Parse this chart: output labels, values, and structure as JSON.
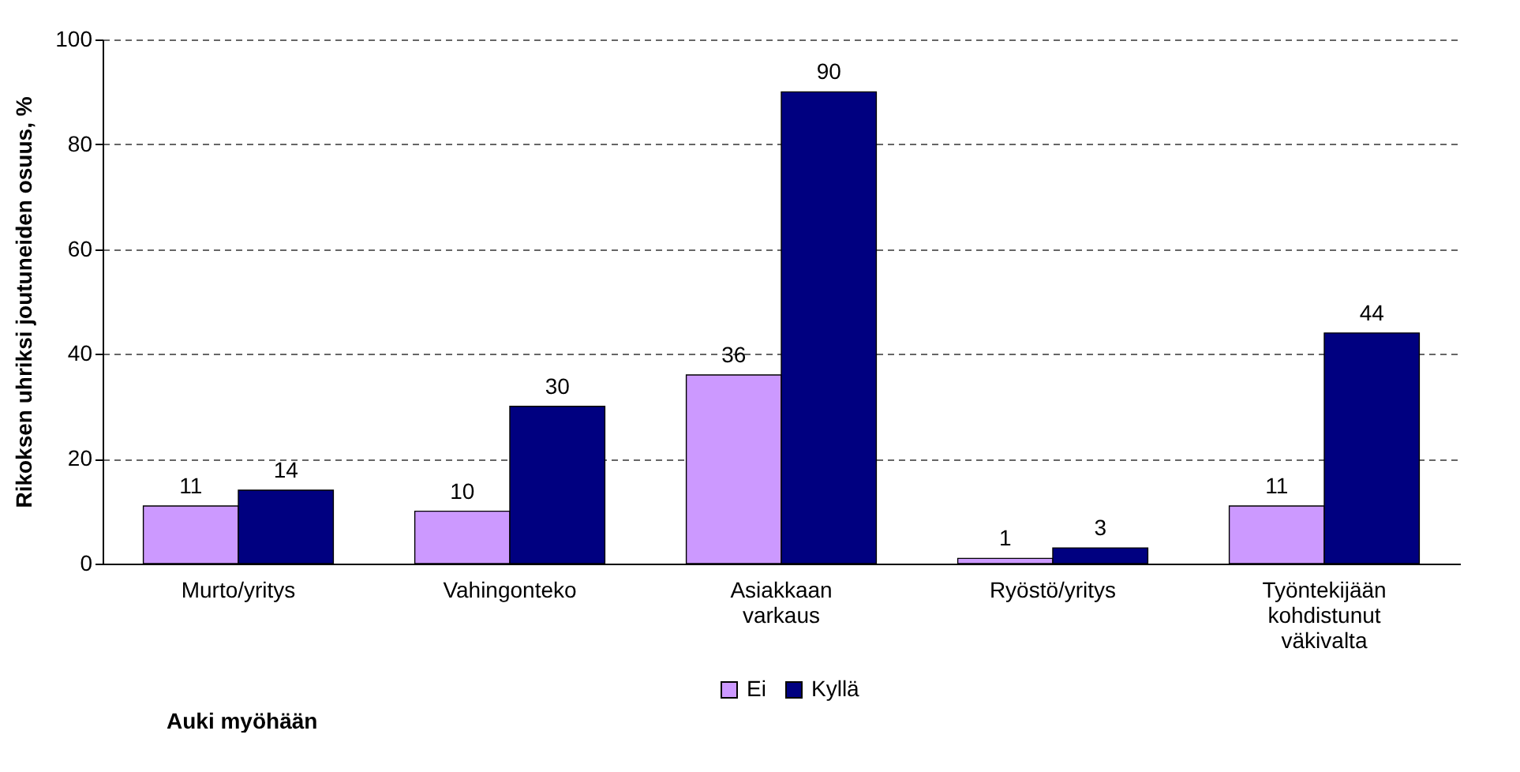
{
  "chart_data": {
    "type": "bar",
    "xlabel": "Auki myöhään",
    "ylabel": "Rikoksen uhriksi joutuneiden osuus, %",
    "categories": [
      "Murto/yritys",
      "Vahingonteko",
      "Asiakkaan varkaus",
      "Ryöstö/yritys",
      "Työntekijään kohdistunut väkivalta"
    ],
    "series": [
      {
        "name": "Ei",
        "color": "#cc99ff",
        "values": [
          11,
          10,
          36,
          1,
          11
        ]
      },
      {
        "name": "Kyllä",
        "color": "#000080",
        "values": [
          14,
          30,
          90,
          3,
          44
        ]
      }
    ],
    "ylim": [
      0,
      100
    ],
    "yticks": [
      0,
      20,
      40,
      60,
      80,
      100
    ],
    "grid": "y",
    "line_style": "dashed",
    "legend": "bottom",
    "data_labels": true
  }
}
